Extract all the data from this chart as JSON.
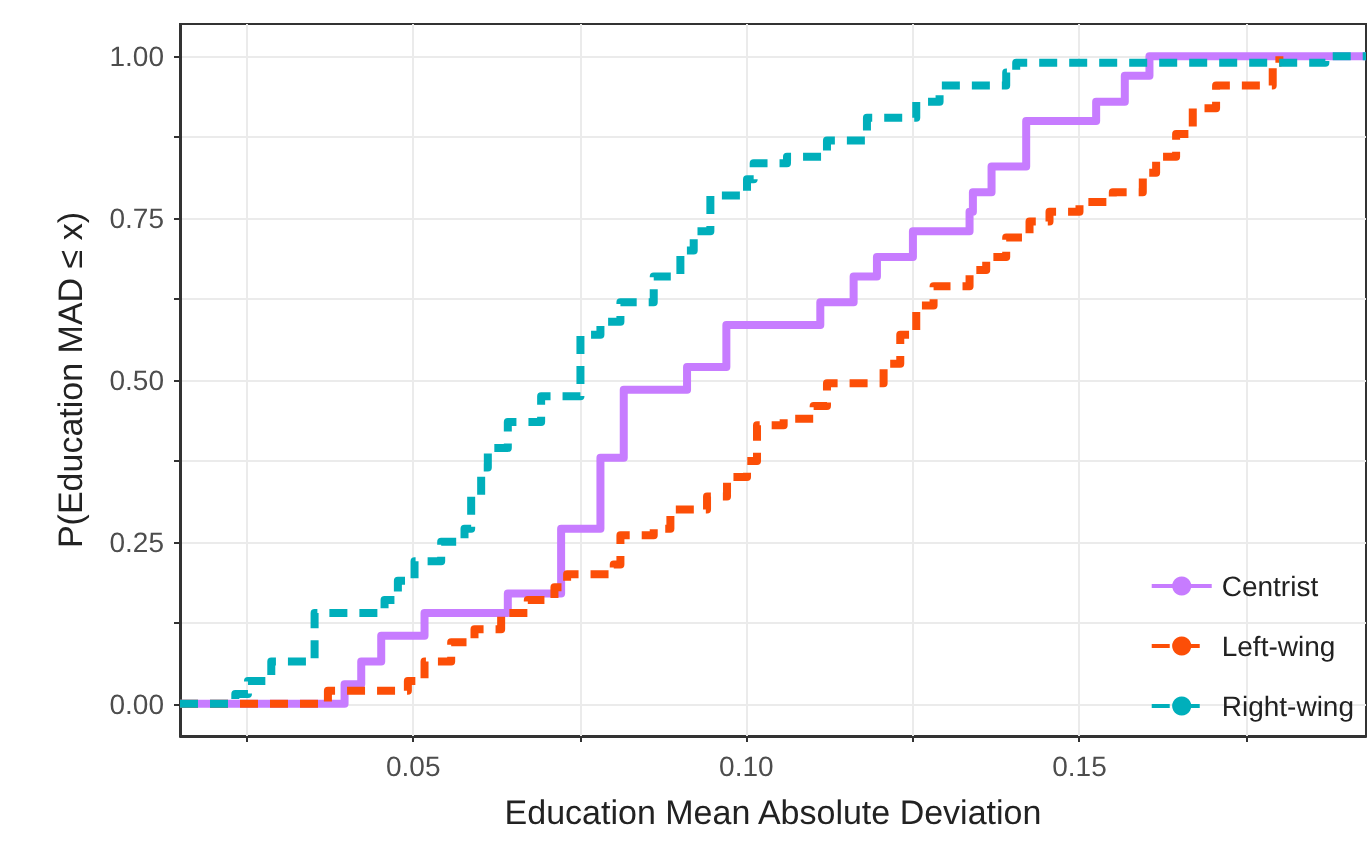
{
  "chart_data": {
    "type": "step",
    "xlabel": "Education Mean Absolute Deviation",
    "ylabel": "P(Education MAD ≤ x)",
    "xlim": [
      0.015,
      0.193
    ],
    "xticks": [
      {
        "value": 0.025,
        "label": null
      },
      {
        "value": 0.05,
        "label": "0.05"
      },
      {
        "value": 0.075,
        "label": null
      },
      {
        "value": 0.1,
        "label": "0.10"
      },
      {
        "value": 0.125,
        "label": null
      },
      {
        "value": 0.15,
        "label": "0.15"
      },
      {
        "value": 0.175,
        "label": null
      }
    ],
    "ylim": [
      -0.05,
      1.05
    ],
    "yticks": [
      {
        "value": 0,
        "label": "0.00"
      },
      {
        "value": 0.125,
        "label": null
      },
      {
        "value": 0.25,
        "label": "0.25"
      },
      {
        "value": 0.375,
        "label": null
      },
      {
        "value": 0.5,
        "label": "0.50"
      },
      {
        "value": 0.625,
        "label": null
      },
      {
        "value": 0.75,
        "label": "0.75"
      },
      {
        "value": 0.875,
        "label": null
      },
      {
        "value": 1,
        "label": "1.00"
      }
    ],
    "grid": true,
    "legend": "bottom right",
    "marker": "none",
    "series": [
      {
        "name": "Centrist",
        "color": "#c77cff",
        "line_style": "solid",
        "x": [
          0.015,
          0.0397,
          0.0422,
          0.0452,
          0.0517,
          0.0642,
          0.0722,
          0.0781,
          0.0816,
          0.0911,
          0.097,
          0.1111,
          0.1161,
          0.1196,
          0.125,
          0.1335,
          0.134,
          0.1368,
          0.142,
          0.1525,
          0.1568,
          0.1605,
          0.193
        ],
        "values": [
          0,
          0.03,
          0.065,
          0.105,
          0.14,
          0.17,
          0.27,
          0.38,
          0.485,
          0.52,
          0.585,
          0.62,
          0.66,
          0.69,
          0.73,
          0.76,
          0.79,
          0.83,
          0.9,
          0.93,
          0.97,
          1,
          1
        ]
      },
      {
        "name": "Left-wing",
        "color": "#fc4e07",
        "line_style": "dashed",
        "x": [
          0.015,
          0.0372,
          0.0492,
          0.0517,
          0.0557,
          0.0592,
          0.0632,
          0.0672,
          0.0712,
          0.0731,
          0.0801,
          0.0811,
          0.0861,
          0.0886,
          0.0941,
          0.0971,
          0.1001,
          0.1016,
          0.1056,
          0.1101,
          0.1121,
          0.1206,
          0.1231,
          0.1255,
          0.1281,
          0.1335,
          0.136,
          0.139,
          0.1425,
          0.1455,
          0.15,
          0.155,
          0.1595,
          0.1615,
          0.1645,
          0.167,
          0.1705,
          0.179,
          0.18
        ],
        "values": [
          0,
          0.02,
          0.035,
          0.065,
          0.095,
          0.115,
          0.14,
          0.16,
          0.18,
          0.2,
          0.215,
          0.26,
          0.27,
          0.3,
          0.32,
          0.35,
          0.375,
          0.43,
          0.44,
          0.46,
          0.495,
          0.525,
          0.57,
          0.615,
          0.645,
          0.67,
          0.69,
          0.72,
          0.745,
          0.76,
          0.775,
          0.79,
          0.82,
          0.845,
          0.88,
          0.92,
          0.955,
          0.99,
          1
        ]
      },
      {
        "name": "Right-wing",
        "color": "#00afbb",
        "line_style": "dashed",
        "x": [
          0.015,
          0.0233,
          0.0252,
          0.0287,
          0.0352,
          0.0457,
          0.0477,
          0.0502,
          0.0542,
          0.0577,
          0.0587,
          0.0602,
          0.0612,
          0.0642,
          0.0692,
          0.0751,
          0.0781,
          0.0811,
          0.0861,
          0.0901,
          0.0921,
          0.0946,
          0.1001,
          0.1011,
          0.1061,
          0.1121,
          0.1181,
          0.1255,
          0.129,
          0.139,
          0.1405,
          0.1869,
          0.193
        ],
        "values": [
          0,
          0.015,
          0.035,
          0.065,
          0.14,
          0.16,
          0.19,
          0.22,
          0.25,
          0.27,
          0.32,
          0.365,
          0.395,
          0.435,
          0.475,
          0.57,
          0.59,
          0.62,
          0.66,
          0.7,
          0.73,
          0.785,
          0.81,
          0.835,
          0.845,
          0.87,
          0.905,
          0.93,
          0.955,
          0.975,
          0.99,
          1,
          1
        ]
      }
    ]
  }
}
